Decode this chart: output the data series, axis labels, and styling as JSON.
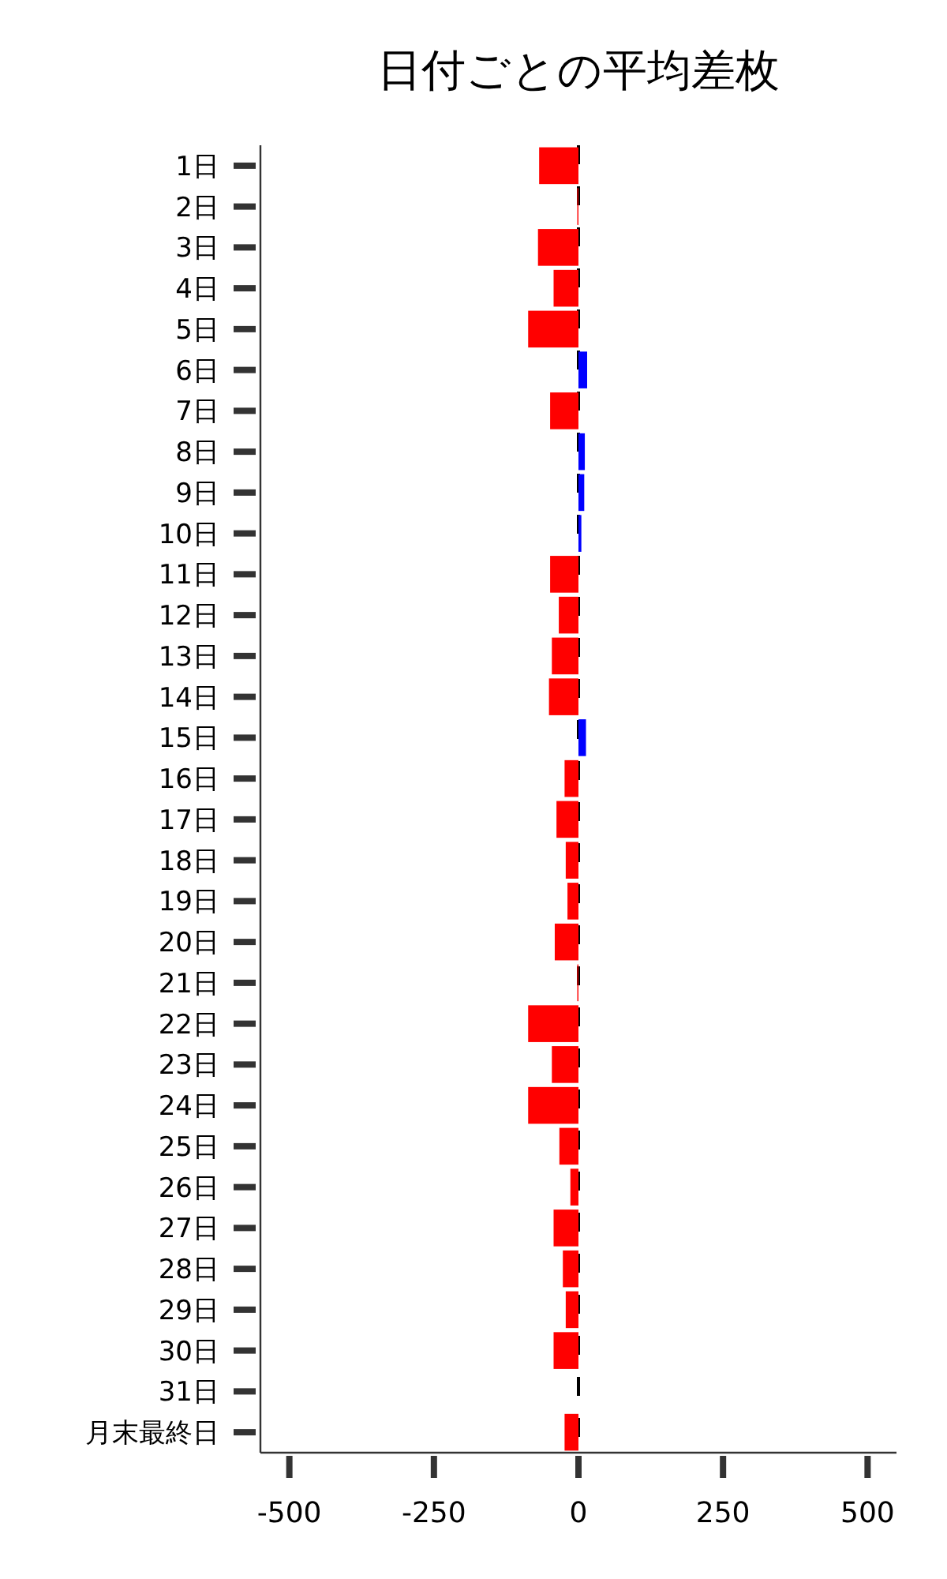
{
  "chart_data": {
    "type": "bar",
    "orientation": "horizontal",
    "title": "日付ごとの平均差枚",
    "categories": [
      "1日",
      "2日",
      "3日",
      "4日",
      "5日",
      "6日",
      "7日",
      "8日",
      "9日",
      "10日",
      "11日",
      "12日",
      "13日",
      "14日",
      "15日",
      "16日",
      "17日",
      "18日",
      "19日",
      "20日",
      "21日",
      "22日",
      "23日",
      "24日",
      "25日",
      "26日",
      "27日",
      "28日",
      "29日",
      "30日",
      "31日",
      "月末最終日"
    ],
    "values": [
      -68,
      -2,
      -70,
      -43,
      -87,
      15,
      -49,
      11,
      10,
      5,
      -49,
      -34,
      -46,
      -51,
      13,
      -24,
      -38,
      -22,
      -19,
      -41,
      -2,
      -87,
      -46,
      -87,
      -33,
      -14,
      -43,
      -27,
      -22,
      -43,
      0,
      -24
    ],
    "colors": [
      "#ff0000",
      "#ff0000",
      "#ff0000",
      "#ff0000",
      "#ff0000",
      "#0000ff",
      "#ff0000",
      "#0000ff",
      "#0000ff",
      "#0000ff",
      "#ff0000",
      "#ff0000",
      "#ff0000",
      "#ff0000",
      "#0000ff",
      "#ff0000",
      "#ff0000",
      "#ff0000",
      "#ff0000",
      "#ff0000",
      "#ff0000",
      "#ff0000",
      "#ff0000",
      "#ff0000",
      "#ff0000",
      "#ff0000",
      "#ff0000",
      "#ff0000",
      "#ff0000",
      "#ff0000",
      "#ff0000",
      "#ff0000"
    ],
    "xlim": [
      -550,
      550
    ],
    "xticks": [
      -500,
      -250,
      0,
      250,
      500
    ],
    "ref_lines": [
      {
        "axis": "x",
        "value": 0,
        "color": "#000000",
        "line_style": "dashed"
      }
    ],
    "grid": false
  }
}
